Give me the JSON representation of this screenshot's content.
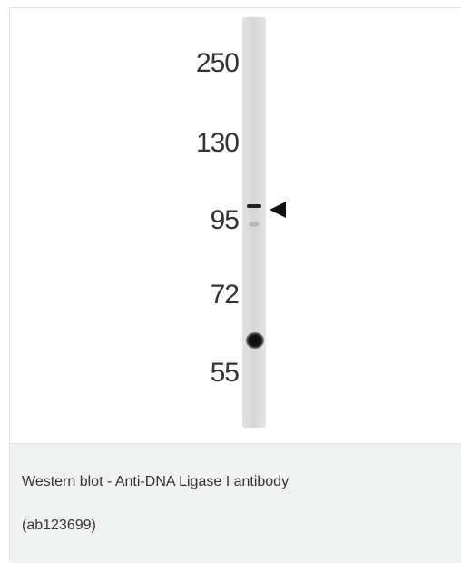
{
  "figure": {
    "markers": [
      "250",
      "130",
      "95",
      "72",
      "55"
    ]
  },
  "caption": {
    "lines": [
      "Western blot - Anti-DNA Ligase I antibody",
      "(ab123699)"
    ]
  }
}
